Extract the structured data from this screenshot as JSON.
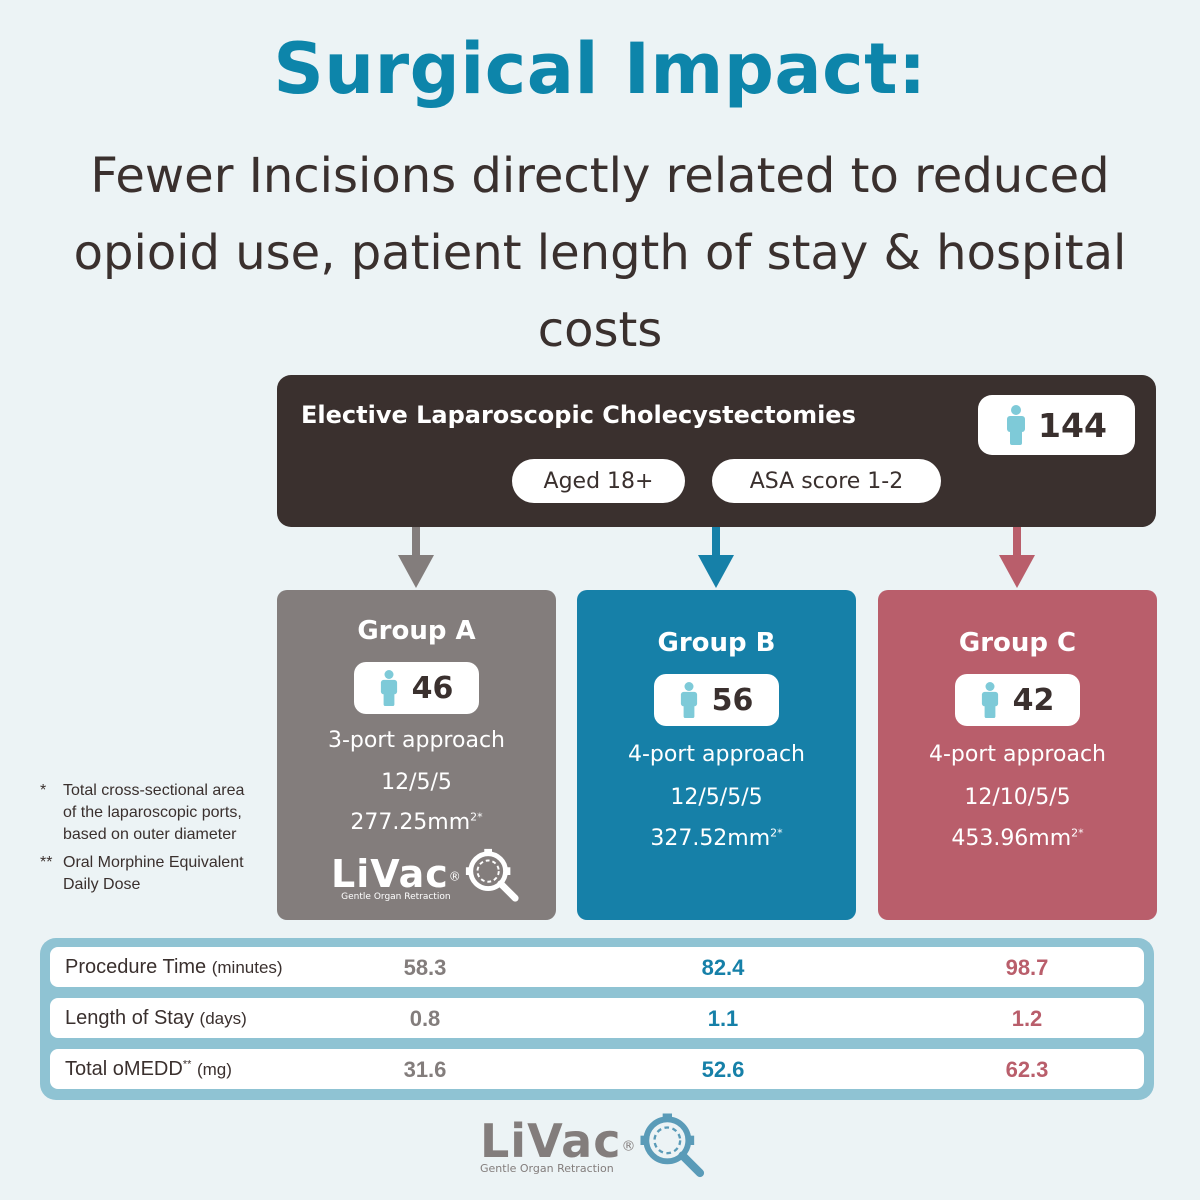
{
  "header": {
    "title": "Surgical Impact:",
    "subtitle": "Fewer Incisions directly related to reduced opioid use, patient length of stay & hospital costs"
  },
  "study": {
    "title": "Elective Laparoscopic Cholecystectomies",
    "total_patients": "144",
    "criteria": [
      "Aged 18+",
      "ASA score 1-2"
    ]
  },
  "groups": [
    {
      "name": "Group A",
      "patients": "46",
      "approach": "3-port approach",
      "ports": "12/5/5",
      "area": "277.25mm",
      "area_sup": "2*"
    },
    {
      "name": "Group B",
      "patients": "56",
      "approach": "4-port approach",
      "ports": "12/5/5/5",
      "area": "327.52mm",
      "area_sup": "2*"
    },
    {
      "name": "Group C",
      "patients": "42",
      "approach": "4-port approach",
      "ports": "12/10/5/5",
      "area": "453.96mm",
      "area_sup": "2*"
    }
  ],
  "footnotes": [
    {
      "mark": "*",
      "text": "Total cross-sectional area of the laparoscopic ports, based on outer diameter"
    },
    {
      "mark": "**",
      "text": "Oral Morphine Equivalent Daily Dose"
    }
  ],
  "table": {
    "rows": [
      {
        "label": "Procedure Time",
        "sup": "",
        "unit": "(minutes)",
        "values": [
          "58.3",
          "82.4",
          "98.7"
        ]
      },
      {
        "label": "Length of Stay",
        "sup": "",
        "unit": "(days)",
        "values": [
          "0.8",
          "1.1",
          "1.2"
        ]
      },
      {
        "label": "Total oMEDD",
        "sup": "**",
        "unit": "(mg)",
        "values": [
          "31.6",
          "52.6",
          "62.3"
        ]
      }
    ]
  },
  "logo": {
    "name": "LiVac",
    "mark": "®",
    "tagline": "Gentle Organ Retraction"
  },
  "colors": {
    "title": "#0d85aa",
    "dark": "#3a302e",
    "group_a": "#837d7c",
    "group_b": "#1680a8",
    "group_c": "#b95e6b",
    "person": "#7ecad8",
    "table_border": "#8fc3d3",
    "background": "#ecf3f5"
  },
  "icons": [
    "person-icon",
    "arrow-down-icon",
    "livac-magnifier-icon"
  ]
}
